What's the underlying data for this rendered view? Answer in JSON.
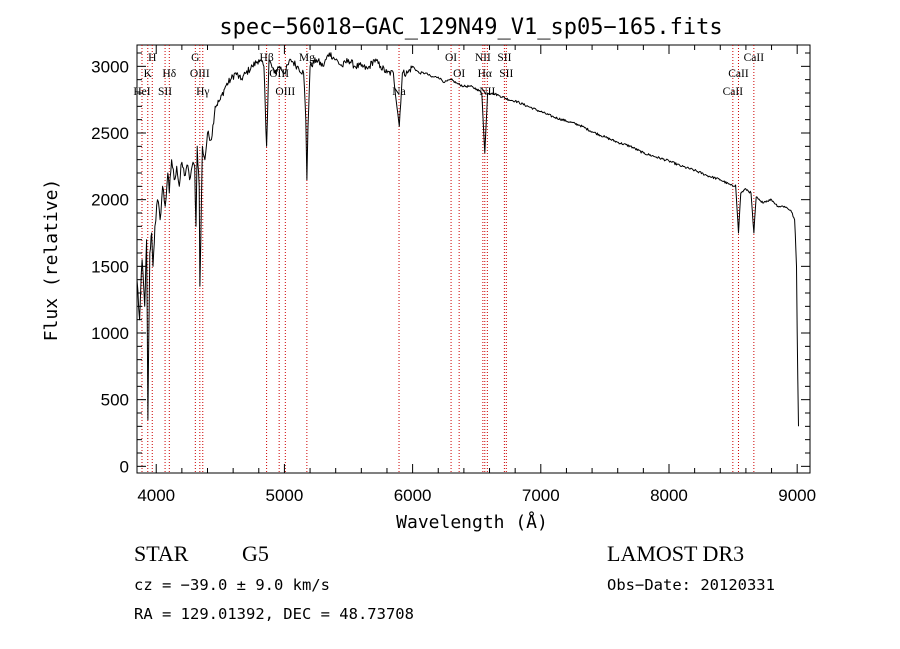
{
  "chart_data": {
    "type": "line",
    "title": "spec−56018−GAC_129N49_V1_sp05−165.fits",
    "xlabel": "Wavelength (Å)",
    "ylabel": "Flux (relative)",
    "xlim": [
      3850,
      9100
    ],
    "ylim": [
      -50,
      3160
    ],
    "x_ticks": [
      4000,
      5000,
      6000,
      7000,
      8000,
      9000
    ],
    "x_tick_labels": [
      "4000",
      "5000",
      "6000",
      "7000",
      "8000",
      "9000"
    ],
    "y_ticks": [
      0,
      500,
      1000,
      1500,
      2000,
      2500,
      3000
    ],
    "y_tick_labels": [
      "0",
      "500",
      "1000",
      "1500",
      "2000",
      "2500",
      "3000"
    ],
    "series": [
      {
        "name": "flux",
        "x": [
          3850,
          3870,
          3890,
          3910,
          3925,
          3935,
          3950,
          3965,
          3975,
          3990,
          4010,
          4030,
          4050,
          4070,
          4090,
          4102,
          4120,
          4140,
          4160,
          4180,
          4200,
          4220,
          4240,
          4260,
          4280,
          4300,
          4310,
          4320,
          4335,
          4341,
          4360,
          4380,
          4400,
          4430,
          4460,
          4500,
          4540,
          4580,
          4620,
          4660,
          4700,
          4750,
          4800,
          4840,
          4861,
          4880,
          4920,
          4960,
          5000,
          5050,
          5100,
          5150,
          5167,
          5175,
          5184,
          5200,
          5250,
          5300,
          5350,
          5400,
          5450,
          5500,
          5550,
          5600,
          5650,
          5700,
          5750,
          5800,
          5850,
          5890,
          5896,
          5920,
          5960,
          6000,
          6050,
          6100,
          6150,
          6200,
          6250,
          6300,
          6350,
          6400,
          6450,
          6500,
          6540,
          6563,
          6585,
          6620,
          6680,
          6750,
          6800,
          6900,
          7000,
          7100,
          7200,
          7300,
          7400,
          7500,
          7600,
          7700,
          7800,
          7900,
          8000,
          8100,
          8200,
          8300,
          8400,
          8498,
          8520,
          8542,
          8560,
          8600,
          8640,
          8662,
          8680,
          8720,
          8800,
          8850,
          8900,
          8950,
          8980,
          8995,
          9000,
          9010
        ],
        "y": [
          1400,
          1100,
          1550,
          1200,
          1700,
          350,
          1600,
          1750,
          1500,
          1800,
          2000,
          1850,
          2100,
          1950,
          2200,
          2050,
          2300,
          2150,
          2250,
          2100,
          2280,
          2180,
          2260,
          2150,
          2250,
          2250,
          1800,
          2400,
          2100,
          1350,
          2400,
          2300,
          2500,
          2450,
          2700,
          2750,
          2850,
          2900,
          2950,
          2900,
          2950,
          3000,
          3050,
          3000,
          2400,
          3050,
          2950,
          3000,
          2950,
          3050,
          3000,
          2950,
          2600,
          2150,
          2550,
          3000,
          3050,
          3000,
          3100,
          3050,
          3000,
          3050,
          3000,
          3000,
          2980,
          3050,
          3000,
          2950,
          2950,
          2600,
          2550,
          2950,
          2950,
          3000,
          2950,
          2950,
          2920,
          2920,
          2880,
          2900,
          2870,
          2850,
          2850,
          2830,
          2800,
          2350,
          2800,
          2800,
          2780,
          2750,
          2740,
          2700,
          2660,
          2620,
          2590,
          2560,
          2510,
          2470,
          2430,
          2400,
          2350,
          2320,
          2290,
          2250,
          2220,
          2180,
          2150,
          2100,
          2110,
          1750,
          2050,
          2080,
          2050,
          1750,
          2020,
          1980,
          2000,
          1950,
          1950,
          1920,
          1850,
          1500,
          1000,
          300
        ]
      }
    ],
    "spectral_lines": [
      {
        "label": "HeI",
        "wavelength": 3889,
        "row": 3
      },
      {
        "label": "K",
        "wavelength": 3934,
        "row": 2
      },
      {
        "label": "H",
        "wavelength": 3969,
        "row": 1
      },
      {
        "label": "SII",
        "wavelength": 4069,
        "row": 3
      },
      {
        "label": "Hδ",
        "wavelength": 4102,
        "row": 2
      },
      {
        "label": "G",
        "wavelength": 4305,
        "row": 1
      },
      {
        "label": "OIII",
        "wavelength": 4340,
        "row": 2
      },
      {
        "label": "Hγ",
        "wavelength": 4363,
        "row": 3
      },
      {
        "label": "Hβ",
        "wavelength": 4861,
        "row": 1
      },
      {
        "label": "OIII",
        "wavelength": 4959,
        "row": 2
      },
      {
        "label": "OIII",
        "wavelength": 5007,
        "row": 3
      },
      {
        "label": "Mg",
        "wavelength": 5175,
        "row": 1
      },
      {
        "label": "Na",
        "wavelength": 5894,
        "row": 3
      },
      {
        "label": "OI",
        "wavelength": 6300,
        "row": 1
      },
      {
        "label": "OI",
        "wavelength": 6363,
        "row": 2
      },
      {
        "label": "NII",
        "wavelength": 6548,
        "row": 1
      },
      {
        "label": "Hα",
        "wavelength": 6563,
        "row": 2
      },
      {
        "label": "NII",
        "wavelength": 6583,
        "row": 3
      },
      {
        "label": "SII",
        "wavelength": 6716,
        "row": 1
      },
      {
        "label": "SII",
        "wavelength": 6731,
        "row": 2
      },
      {
        "label": "CaII",
        "wavelength": 8498,
        "row": 3
      },
      {
        "label": "CaII",
        "wavelength": 8542,
        "row": 2
      },
      {
        "label": "CaII",
        "wavelength": 8662,
        "row": 1
      }
    ]
  },
  "info": {
    "object_class": "STAR",
    "subclass": "G5",
    "survey": "LAMOST DR3",
    "redshift": "cz = −39.0 ± 9.0 km/s",
    "obs_date": "Obs−Date: 20120331",
    "coords": "RA = 129.01392, DEC =  48.73708"
  },
  "colors": {
    "spectrum": "#000000",
    "line_markers": "#cc0000"
  }
}
